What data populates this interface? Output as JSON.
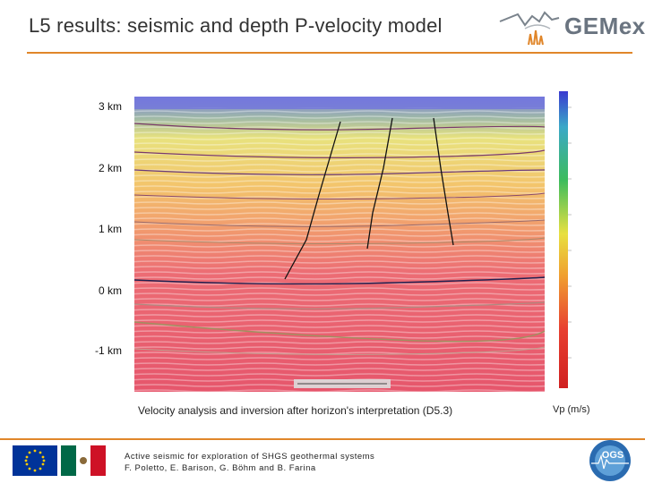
{
  "slide": {
    "title": "L5 results: seismic and depth P-velocity model"
  },
  "logo": {
    "text": "GEMex"
  },
  "depth_axis": {
    "labels": [
      "3 km",
      "2 km",
      "1 km",
      "0 km",
      "-1 km"
    ]
  },
  "figure": {
    "caption": "Velocity analysis and inversion after horizon's interpretation (D5.3)",
    "colorbar_label": "Vp (m/s)"
  },
  "footer": {
    "line1": "Active seismic for exploration of SHGS geothermal systems",
    "line2": "F. Poletto, E. Barison, G. Böhm and B. Farina",
    "partner_logo_text": "OGS"
  },
  "colors": {
    "accent_rule": "#e0862a",
    "eu_blue": "#003399",
    "eu_star": "#ffcc00",
    "mexico_green": "#006847",
    "mexico_red": "#ce1126"
  }
}
